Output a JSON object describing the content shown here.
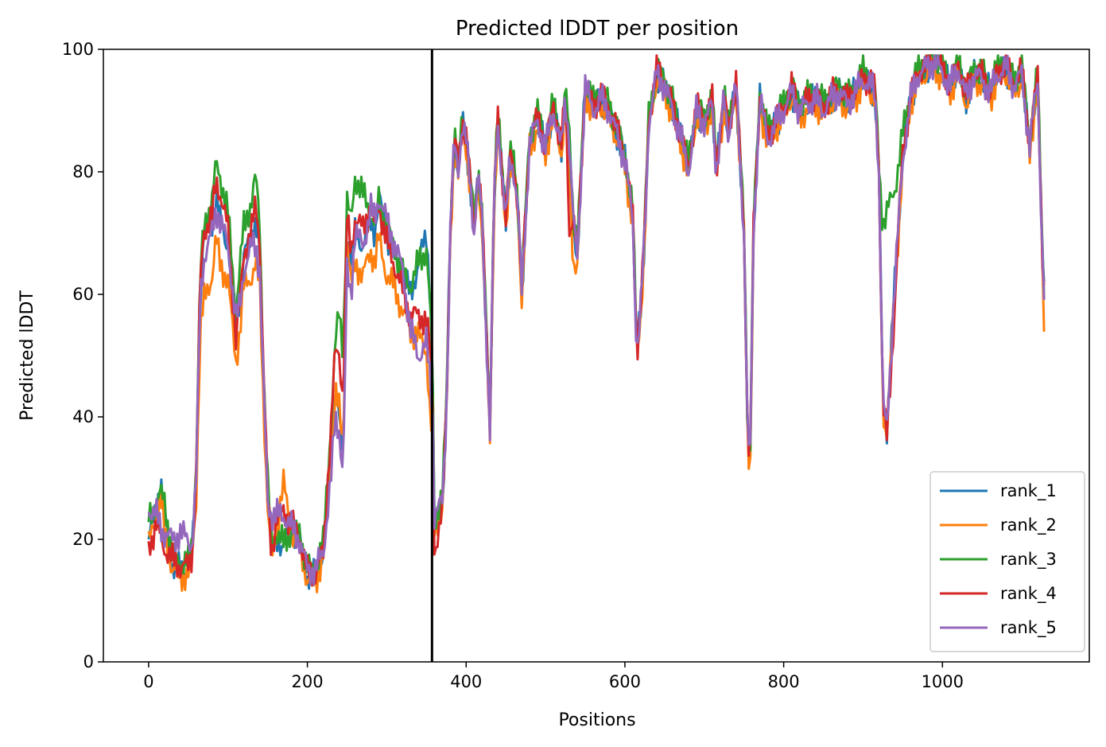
{
  "chart_data": {
    "type": "line",
    "title": "Predicted lDDT per position",
    "xlabel": "Positions",
    "ylabel": "Predicted lDDT",
    "xlim": [
      -57,
      1185
    ],
    "ylim": [
      0,
      100
    ],
    "xticks": [
      0,
      200,
      400,
      600,
      800,
      1000
    ],
    "yticks": [
      0,
      20,
      40,
      60,
      80,
      100
    ],
    "vline_x": 357,
    "grid": false,
    "legend_position": "lower-right",
    "base_x": [
      0,
      10,
      15,
      20,
      30,
      40,
      50,
      55,
      60,
      65,
      70,
      80,
      85,
      90,
      100,
      110,
      115,
      120,
      130,
      135,
      140,
      145,
      150,
      155,
      160,
      170,
      180,
      190,
      200,
      210,
      220,
      230,
      235,
      240,
      245,
      250,
      255,
      260,
      270,
      280,
      285,
      290,
      300,
      310,
      320,
      330,
      340,
      350,
      355,
      358,
      360,
      365,
      370,
      375,
      380,
      385,
      390,
      395,
      400,
      405,
      410,
      415,
      420,
      425,
      430,
      435,
      440,
      445,
      450,
      455,
      460,
      465,
      470,
      480,
      490,
      500,
      510,
      520,
      525,
      530,
      535,
      540,
      545,
      550,
      560,
      570,
      580,
      590,
      600,
      610,
      615,
      620,
      625,
      630,
      640,
      650,
      660,
      670,
      680,
      690,
      700,
      710,
      715,
      720,
      725,
      730,
      740,
      750,
      755,
      758,
      762,
      770,
      780,
      790,
      800,
      810,
      820,
      830,
      840,
      850,
      860,
      870,
      880,
      890,
      900,
      910,
      915,
      920,
      925,
      930,
      935,
      940,
      945,
      950,
      960,
      970,
      980,
      990,
      1000,
      1010,
      1020,
      1030,
      1040,
      1050,
      1060,
      1070,
      1080,
      1090,
      1100,
      1110,
      1115,
      1120,
      1125,
      1128
    ],
    "series": [
      {
        "name": "rank_1",
        "color": "#1f77b4",
        "offset": 0,
        "values": [
          20,
          25,
          30,
          24,
          16,
          15,
          15,
          18,
          30,
          60,
          70,
          72,
          76,
          72,
          68,
          55,
          60,
          66,
          70,
          72,
          66,
          45,
          27,
          17,
          20,
          19,
          22,
          20,
          14,
          14,
          18,
          35,
          45,
          40,
          32,
          70,
          65,
          70,
          68,
          72,
          70,
          76,
          70,
          66,
          63,
          60,
          65,
          70,
          60,
          45,
          22,
          24,
          26,
          40,
          70,
          85,
          80,
          88,
          85,
          78,
          70,
          80,
          72,
          55,
          38,
          75,
          88,
          80,
          72,
          82,
          80,
          75,
          60,
          85,
          88,
          84,
          90,
          84,
          92,
          85,
          72,
          66,
          80,
          94,
          90,
          92,
          90,
          86,
          82,
          72,
          50,
          58,
          70,
          88,
          96,
          94,
          90,
          86,
          80,
          90,
          88,
          91,
          80,
          86,
          92,
          86,
          94,
          70,
          34,
          35,
          70,
          92,
          85,
          88,
          90,
          93,
          90,
          91,
          92,
          90,
          92,
          93,
          91,
          93,
          95,
          94,
          93,
          80,
          42,
          38,
          50,
          62,
          72,
          82,
          92,
          96,
          97,
          98,
          96,
          94,
          97,
          92,
          96,
          95,
          93,
          96,
          97,
          94,
          96,
          84,
          90,
          95,
          70,
          60
        ]
      },
      {
        "name": "rank_2",
        "color": "#ff7f0e",
        "offset": -0.9,
        "values": [
          20,
          25,
          28,
          22,
          16,
          15,
          15,
          18,
          28,
          55,
          60,
          64,
          70,
          66,
          63,
          50,
          55,
          62,
          64,
          66,
          62,
          42,
          26,
          17,
          22,
          30,
          22,
          20,
          14,
          14,
          18,
          35,
          45,
          42,
          36,
          70,
          62,
          66,
          64,
          68,
          66,
          70,
          64,
          62,
          58,
          55,
          54,
          52,
          40,
          38,
          22,
          24,
          26,
          40,
          70,
          85,
          80,
          88,
          85,
          78,
          70,
          80,
          72,
          55,
          38,
          75,
          88,
          80,
          72,
          82,
          80,
          75,
          60,
          85,
          88,
          84,
          90,
          84,
          92,
          80,
          66,
          66,
          80,
          94,
          90,
          92,
          90,
          86,
          82,
          72,
          50,
          58,
          70,
          88,
          96,
          94,
          90,
          86,
          80,
          90,
          88,
          91,
          80,
          86,
          92,
          86,
          94,
          70,
          34,
          35,
          70,
          92,
          85,
          88,
          90,
          93,
          90,
          91,
          92,
          90,
          92,
          93,
          91,
          93,
          95,
          94,
          93,
          80,
          42,
          38,
          50,
          62,
          72,
          82,
          92,
          96,
          97,
          98,
          96,
          94,
          97,
          92,
          96,
          95,
          93,
          96,
          97,
          94,
          96,
          84,
          90,
          95,
          70,
          56
        ]
      },
      {
        "name": "rank_3",
        "color": "#2ca02c",
        "offset": 1.3,
        "values": [
          22,
          25,
          26,
          25,
          16,
          15,
          15,
          18,
          32,
          62,
          70,
          74,
          80,
          78,
          72,
          56,
          63,
          70,
          74,
          78,
          70,
          45,
          28,
          18,
          20,
          18,
          20,
          20,
          14,
          14,
          18,
          38,
          50,
          56,
          50,
          74,
          70,
          78,
          75,
          72,
          70,
          74,
          70,
          66,
          62,
          60,
          64,
          66,
          56,
          44,
          22,
          24,
          26,
          40,
          70,
          85,
          80,
          88,
          85,
          78,
          70,
          80,
          72,
          55,
          38,
          75,
          88,
          80,
          72,
          82,
          80,
          75,
          60,
          85,
          88,
          84,
          90,
          84,
          92,
          85,
          72,
          66,
          80,
          94,
          90,
          92,
          90,
          86,
          82,
          72,
          50,
          58,
          70,
          88,
          96,
          94,
          90,
          86,
          80,
          90,
          88,
          91,
          80,
          86,
          92,
          86,
          94,
          70,
          34,
          35,
          70,
          92,
          85,
          88,
          90,
          93,
          90,
          91,
          92,
          90,
          92,
          93,
          91,
          93,
          95,
          94,
          93,
          80,
          70,
          72,
          74,
          76,
          80,
          85,
          92,
          96,
          97,
          98,
          96,
          94,
          97,
          92,
          96,
          95,
          93,
          96,
          97,
          94,
          96,
          84,
          90,
          95,
          70,
          60
        ]
      },
      {
        "name": "rank_4",
        "color": "#d62728",
        "offset": 0.6,
        "values": [
          18,
          22,
          20,
          18,
          16,
          15,
          15,
          17,
          30,
          62,
          70,
          72,
          78,
          76,
          70,
          52,
          58,
          66,
          70,
          74,
          68,
          46,
          26,
          17,
          22,
          24,
          22,
          20,
          14,
          14,
          17,
          38,
          50,
          50,
          42,
          72,
          66,
          72,
          70,
          74,
          70,
          74,
          68,
          64,
          60,
          56,
          56,
          55,
          50,
          40,
          18,
          20,
          24,
          40,
          70,
          85,
          80,
          88,
          85,
          78,
          70,
          80,
          72,
          55,
          38,
          75,
          88,
          80,
          72,
          82,
          80,
          75,
          60,
          85,
          88,
          84,
          90,
          84,
          92,
          70,
          72,
          66,
          80,
          94,
          90,
          92,
          90,
          86,
          82,
          72,
          50,
          58,
          70,
          88,
          96,
          94,
          90,
          86,
          80,
          90,
          88,
          91,
          80,
          86,
          92,
          86,
          94,
          70,
          34,
          35,
          70,
          92,
          85,
          88,
          90,
          93,
          90,
          91,
          92,
          90,
          92,
          93,
          91,
          93,
          95,
          94,
          93,
          80,
          42,
          36,
          46,
          58,
          72,
          82,
          92,
          96,
          97,
          98,
          96,
          94,
          97,
          92,
          96,
          95,
          93,
          96,
          97,
          94,
          96,
          84,
          90,
          95,
          70,
          60
        ]
      },
      {
        "name": "rank_5",
        "color": "#9467bd",
        "offset": 0,
        "values": [
          25,
          24,
          22,
          21,
          20,
          21,
          20,
          19,
          30,
          60,
          66,
          70,
          74,
          72,
          68,
          56,
          58,
          64,
          68,
          68,
          64,
          44,
          26,
          24,
          24,
          24,
          22,
          20,
          15,
          15,
          18,
          30,
          40,
          38,
          30,
          64,
          60,
          70,
          68,
          74,
          72,
          76,
          72,
          68,
          64,
          54,
          50,
          52,
          46,
          40,
          24,
          25,
          26,
          40,
          70,
          85,
          80,
          88,
          85,
          78,
          70,
          80,
          72,
          55,
          38,
          75,
          88,
          80,
          72,
          82,
          80,
          75,
          60,
          85,
          88,
          84,
          90,
          84,
          92,
          85,
          72,
          66,
          80,
          94,
          90,
          92,
          90,
          86,
          82,
          72,
          50,
          58,
          70,
          88,
          96,
          94,
          90,
          86,
          80,
          90,
          88,
          91,
          80,
          86,
          92,
          86,
          94,
          70,
          34,
          35,
          70,
          92,
          85,
          88,
          90,
          93,
          90,
          91,
          92,
          90,
          92,
          93,
          91,
          93,
          95,
          94,
          93,
          80,
          42,
          38,
          50,
          62,
          72,
          82,
          92,
          96,
          97,
          98,
          96,
          94,
          97,
          92,
          96,
          95,
          93,
          96,
          97,
          94,
          96,
          84,
          90,
          95,
          70,
          60
        ]
      }
    ]
  }
}
